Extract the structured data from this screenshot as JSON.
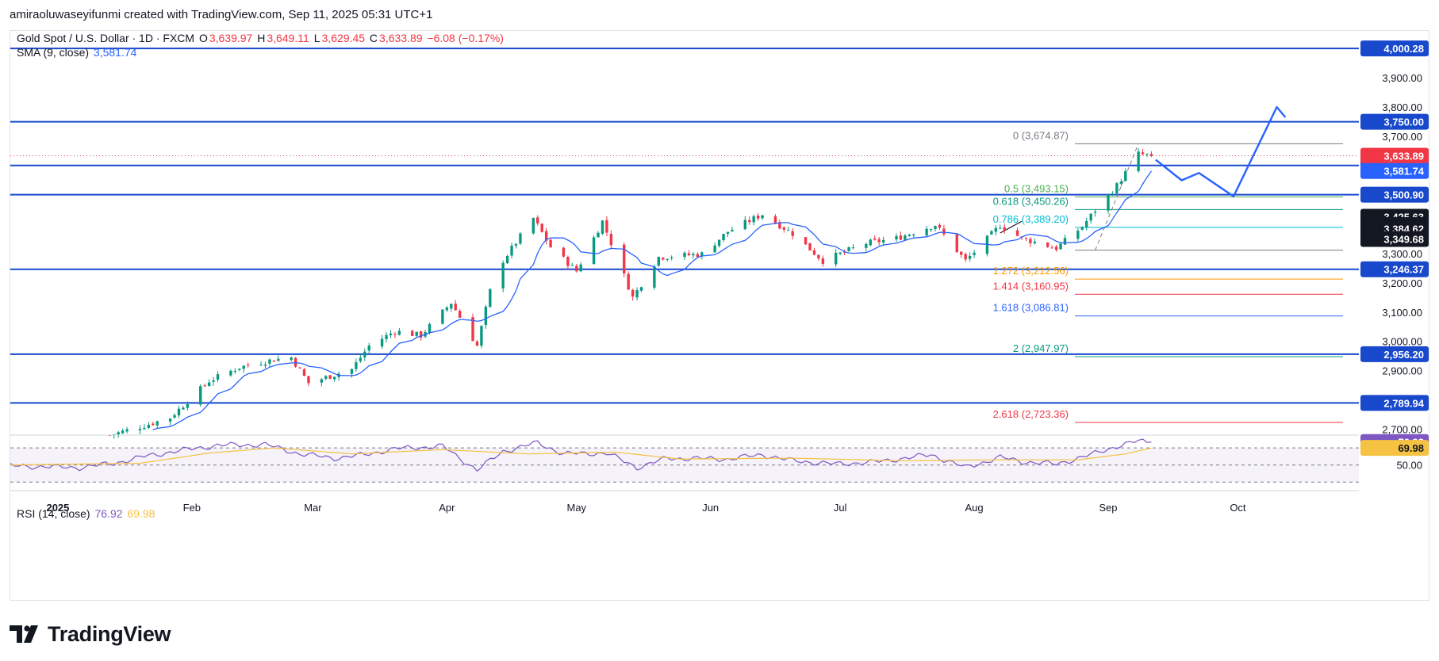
{
  "header": {
    "creator_line": "amiraoluwaseyifunmi created with TradingView.com, Sep 11, 2025 05:31 UTC+1"
  },
  "legend": {
    "symbol": "Gold Spot / U.S. Dollar · 1D · FXCM",
    "o_label": "O",
    "o_value": "3,639.97",
    "h_label": "H",
    "h_value": "3,649.11",
    "l_label": "L",
    "l_value": "3,629.45",
    "c_label": "C",
    "c_value": "3,633.89",
    "change": "−6.08 (−0.17%)",
    "sma_label": "SMA (9, close)",
    "sma_value": "3,581.74",
    "rsi_label": "RSI (14, close)",
    "rsi_value": "76.92",
    "rsi_ma_value": "69.98"
  },
  "brand": {
    "name": "TradingView",
    "icon": "tradingview-logo-icon"
  },
  "colors": {
    "up": "#089981",
    "down": "#f23645",
    "sma": "#2962ff",
    "level": "#1848cc",
    "rsi": "#7e57c2",
    "rsi_ma": "#f5c242",
    "axis_text": "#131722",
    "fib_0": "#787b86",
    "fib_05": "#4caf50",
    "fib_0618": "#089981",
    "fib_0786": "#00bcd4",
    "fib_1272": "#ff9800",
    "fib_1414": "#f23645",
    "fib_1618": "#2962ff",
    "fib_2": "#089981",
    "fib_2618": "#f23645",
    "current_price_bg": "#f23645"
  },
  "chart_data": {
    "type": "candlestick",
    "title": "Gold Spot / U.S. Dollar · 1D · FXCM",
    "y_ticks": [
      "2,700.00",
      "2,800.00",
      "2,900.00",
      "3,000.00",
      "3,100.00",
      "3,200.00",
      "3,300.00",
      "3,400.00",
      "3,500.00",
      "3,600.00",
      "3,700.00",
      "3,800.00",
      "3,900.00",
      "4,000.00"
    ],
    "x_ticks": [
      {
        "label": "2025",
        "date": "2025-01-01",
        "bold": true
      },
      {
        "label": "Feb",
        "date": "2025-02-01"
      },
      {
        "label": "Mar",
        "date": "2025-03-01"
      },
      {
        "label": "Apr",
        "date": "2025-04-01"
      },
      {
        "label": "May",
        "date": "2025-05-01"
      },
      {
        "label": "Jun",
        "date": "2025-06-01"
      },
      {
        "label": "Jul",
        "date": "2025-07-01"
      },
      {
        "label": "Aug",
        "date": "2025-08-01"
      },
      {
        "label": "Sep",
        "date": "2025-09-01"
      },
      {
        "label": "Oct",
        "date": "2025-10-01"
      }
    ],
    "ylim": [
      2680,
      4060
    ],
    "x_range": [
      "2024-12-21",
      "2025-10-29"
    ],
    "horizontal_levels": [
      {
        "price": 4000.28,
        "label": "4,000.28"
      },
      {
        "price": 3750.0,
        "label": "3,750.00"
      },
      {
        "price": 3600.76,
        "label": "3,600.76"
      },
      {
        "price": 3500.9,
        "label": "3,500.90"
      },
      {
        "price": 3246.37,
        "label": "3,246.37"
      },
      {
        "price": 2956.2,
        "label": "2,956.20"
      },
      {
        "price": 2789.94,
        "label": "2,789.94"
      }
    ],
    "price_labels": [
      {
        "price": 3633.89,
        "label": "3,633.89",
        "style": "current"
      },
      {
        "price": 3581.74,
        "label": "3,581.74",
        "style": "sma"
      },
      {
        "price": 3425.63,
        "label": "3,425.63",
        "style": "dark"
      },
      {
        "price": 3397.41,
        "label": "3,397.41",
        "style": "dark"
      },
      {
        "price": 3384.62,
        "label": "3,384.62",
        "style": "dark"
      },
      {
        "price": 3349.68,
        "label": "3,349.68",
        "style": "dark"
      }
    ],
    "fib_levels": [
      {
        "ratio": "0",
        "price": 3674.87,
        "label": "0 (3,674.87)",
        "color": "#787b86"
      },
      {
        "ratio": "0.5",
        "price": 3493.15,
        "label": "0.5 (3,493.15)",
        "color": "#4caf50"
      },
      {
        "ratio": "0.618",
        "price": 3450.26,
        "label": "0.618 (3,450.26)",
        "color": "#089981"
      },
      {
        "ratio": "0.786",
        "price": 3389.2,
        "label": "0.786 (3,389.20)",
        "color": "#00bcd4"
      },
      {
        "ratio": "1",
        "price": 3311.42,
        "label": "",
        "color": "#787b86"
      },
      {
        "ratio": "1.272",
        "price": 3212.56,
        "label": "1.272 (3,212.56)",
        "color": "#ff9800"
      },
      {
        "ratio": "1.414",
        "price": 3160.95,
        "label": "1.414 (3,160.95)",
        "color": "#f23645"
      },
      {
        "ratio": "1.618",
        "price": 3086.81,
        "label": "1.618 (3,086.81)",
        "color": "#2962ff"
      },
      {
        "ratio": "2",
        "price": 2947.97,
        "label": "2 (2,947.97)",
        "color": "#089981"
      },
      {
        "ratio": "2.618",
        "price": 2723.36,
        "label": "2.618 (2,723.36)",
        "color": "#f23645"
      }
    ],
    "projection_path": [
      {
        "date": "2025-09-12",
        "price": 3620
      },
      {
        "date": "2025-09-18",
        "price": 3550
      },
      {
        "date": "2025-09-22",
        "price": 3575
      },
      {
        "date": "2025-09-30",
        "price": 3495
      },
      {
        "date": "2025-10-10",
        "price": 3800
      },
      {
        "date": "2025-10-12",
        "price": 3765
      }
    ],
    "rsi": {
      "label": "RSI (14, close)",
      "value": 76.92,
      "ma_value": 69.98,
      "levels": [
        70,
        50,
        30
      ],
      "level_labels": {
        "50": "50.00"
      },
      "ylim": [
        20,
        85
      ],
      "anchors": [
        {
          "date": "2024-12-21",
          "v": 49
        },
        {
          "date": "2025-01-06",
          "v": 47
        },
        {
          "date": "2025-01-14",
          "v": 52
        },
        {
          "date": "2025-01-21",
          "v": 60
        },
        {
          "date": "2025-01-28",
          "v": 66
        },
        {
          "date": "2025-02-07",
          "v": 73
        },
        {
          "date": "2025-02-18",
          "v": 74
        },
        {
          "date": "2025-02-26",
          "v": 63
        },
        {
          "date": "2025-03-06",
          "v": 58
        },
        {
          "date": "2025-03-13",
          "v": 62
        },
        {
          "date": "2025-03-20",
          "v": 69
        },
        {
          "date": "2025-03-31",
          "v": 72
        },
        {
          "date": "2025-04-08",
          "v": 44
        },
        {
          "date": "2025-04-14",
          "v": 66
        },
        {
          "date": "2025-04-22",
          "v": 76
        },
        {
          "date": "2025-04-28",
          "v": 63
        },
        {
          "date": "2025-05-08",
          "v": 64
        },
        {
          "date": "2025-05-15",
          "v": 47
        },
        {
          "date": "2025-05-22",
          "v": 58
        },
        {
          "date": "2025-06-05",
          "v": 57
        },
        {
          "date": "2025-06-13",
          "v": 62
        },
        {
          "date": "2025-06-20",
          "v": 55
        },
        {
          "date": "2025-06-30",
          "v": 51
        },
        {
          "date": "2025-07-10",
          "v": 54
        },
        {
          "date": "2025-07-22",
          "v": 62
        },
        {
          "date": "2025-07-30",
          "v": 47
        },
        {
          "date": "2025-08-07",
          "v": 59
        },
        {
          "date": "2025-08-12",
          "v": 54
        },
        {
          "date": "2025-08-20",
          "v": 51
        },
        {
          "date": "2025-08-28",
          "v": 62
        },
        {
          "date": "2025-09-03",
          "v": 72
        },
        {
          "date": "2025-09-08",
          "v": 78
        },
        {
          "date": "2025-09-11",
          "v": 76.92
        }
      ],
      "ma_anchors": [
        {
          "date": "2024-12-21",
          "v": 50
        },
        {
          "date": "2025-01-20",
          "v": 52
        },
        {
          "date": "2025-02-05",
          "v": 64
        },
        {
          "date": "2025-02-20",
          "v": 70
        },
        {
          "date": "2025-03-10",
          "v": 63
        },
        {
          "date": "2025-03-31",
          "v": 68
        },
        {
          "date": "2025-04-20",
          "v": 63
        },
        {
          "date": "2025-05-10",
          "v": 65
        },
        {
          "date": "2025-05-25",
          "v": 57
        },
        {
          "date": "2025-06-20",
          "v": 58
        },
        {
          "date": "2025-07-15",
          "v": 55
        },
        {
          "date": "2025-08-05",
          "v": 56
        },
        {
          "date": "2025-08-25",
          "v": 56
        },
        {
          "date": "2025-09-05",
          "v": 63
        },
        {
          "date": "2025-09-11",
          "v": 69.98
        }
      ]
    },
    "price_anchors": [
      {
        "date": "2025-01-13",
        "close": 2680
      },
      {
        "date": "2025-01-20",
        "close": 2708
      },
      {
        "date": "2025-01-27",
        "close": 2740
      },
      {
        "date": "2025-02-05",
        "close": 2865
      },
      {
        "date": "2025-02-12",
        "close": 2912
      },
      {
        "date": "2025-02-20",
        "close": 2938
      },
      {
        "date": "2025-02-24",
        "close": 2945
      },
      {
        "date": "2025-02-28",
        "close": 2858
      },
      {
        "date": "2025-03-10",
        "close": 2905
      },
      {
        "date": "2025-03-14",
        "close": 2985
      },
      {
        "date": "2025-03-20",
        "close": 3035
      },
      {
        "date": "2025-03-26",
        "close": 3020
      },
      {
        "date": "2025-04-02",
        "close": 3132
      },
      {
        "date": "2025-04-08",
        "close": 2985
      },
      {
        "date": "2025-04-12",
        "close": 3235
      },
      {
        "date": "2025-04-21",
        "close": 3420
      },
      {
        "date": "2025-04-25",
        "close": 3322
      },
      {
        "date": "2025-05-01",
        "close": 3240
      },
      {
        "date": "2025-05-07",
        "close": 3410
      },
      {
        "date": "2025-05-14",
        "close": 3150
      },
      {
        "date": "2025-05-20",
        "close": 3288
      },
      {
        "date": "2025-05-30",
        "close": 3298
      },
      {
        "date": "2025-06-05",
        "close": 3375
      },
      {
        "date": "2025-06-13",
        "close": 3434
      },
      {
        "date": "2025-06-20",
        "close": 3368
      },
      {
        "date": "2025-06-27",
        "close": 3275
      },
      {
        "date": "2025-07-07",
        "close": 3335
      },
      {
        "date": "2025-07-14",
        "close": 3352
      },
      {
        "date": "2025-07-23",
        "close": 3398
      },
      {
        "date": "2025-07-30",
        "close": 3275
      },
      {
        "date": "2025-08-07",
        "close": 3396
      },
      {
        "date": "2025-08-12",
        "close": 3352
      },
      {
        "date": "2025-08-20",
        "close": 3318
      },
      {
        "date": "2025-08-26",
        "close": 3392
      },
      {
        "date": "2025-08-29",
        "close": 3448
      },
      {
        "date": "2025-09-03",
        "close": 3532
      },
      {
        "date": "2025-09-08",
        "close": 3640
      },
      {
        "date": "2025-09-11",
        "close": 3633.89
      }
    ]
  }
}
